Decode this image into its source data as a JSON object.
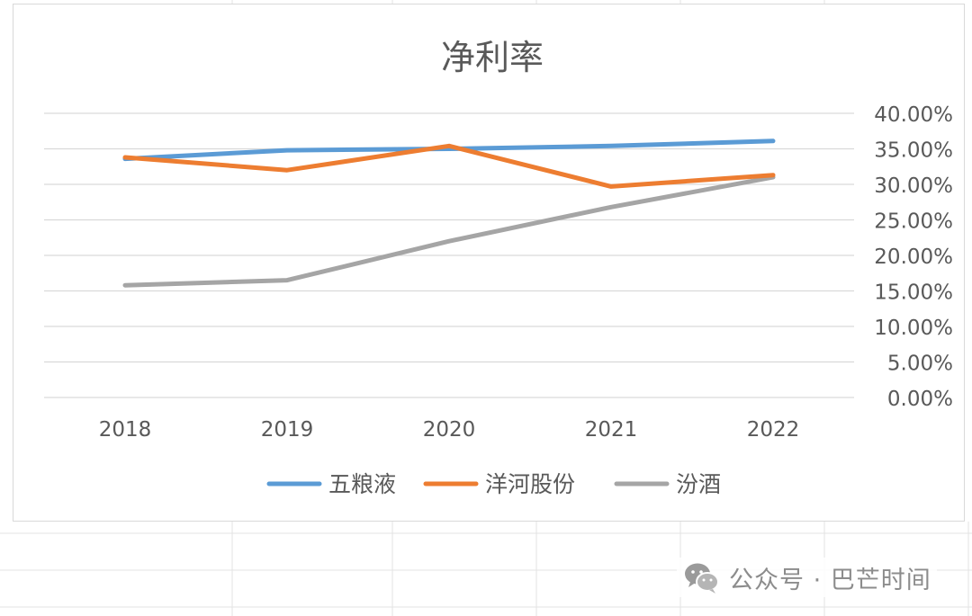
{
  "chart_data": {
    "type": "line",
    "title": "净利率",
    "categories": [
      "2018",
      "2019",
      "2020",
      "2021",
      "2022"
    ],
    "series": [
      {
        "name": "五粮液",
        "color": "#5b9bd5",
        "values": [
          0.336,
          0.348,
          0.35,
          0.354,
          0.361
        ]
      },
      {
        "name": "洋河股份",
        "color": "#ed7d31",
        "values": [
          0.338,
          0.32,
          0.354,
          0.297,
          0.313
        ]
      },
      {
        "name": "汾酒",
        "color": "#a5a5a5",
        "values": [
          0.158,
          0.165,
          0.22,
          0.268,
          0.31
        ]
      }
    ],
    "ylim": [
      0,
      0.4
    ],
    "yticks": [
      "40.00%",
      "35.00%",
      "30.00%",
      "25.00%",
      "20.00%",
      "15.00%",
      "10.00%",
      "5.00%",
      "0.00%"
    ],
    "y_axis_side": "right",
    "grid": true,
    "legend_position": "bottom",
    "xlabel": "",
    "ylabel": ""
  },
  "watermark": {
    "text": "公众号 · 巴芒时间",
    "icon": "wechat-icon"
  }
}
